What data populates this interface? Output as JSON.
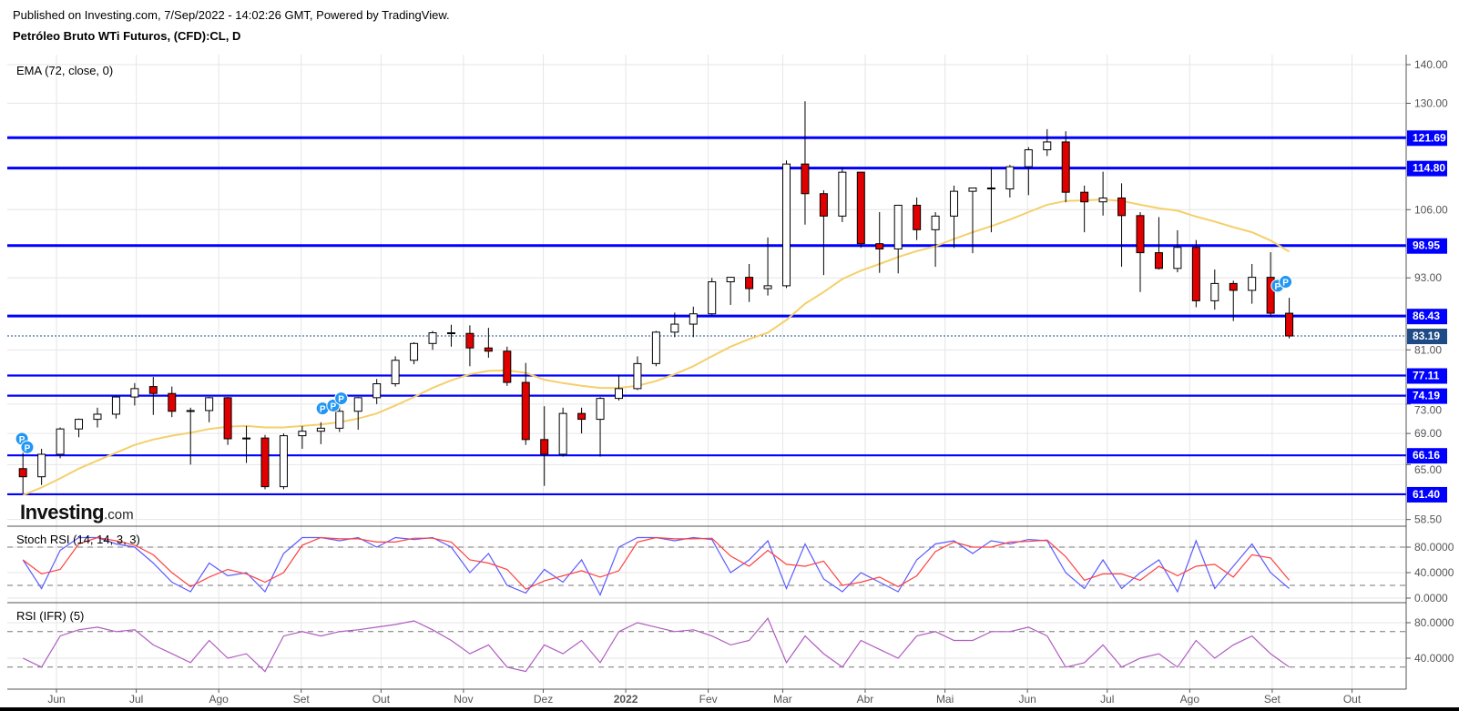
{
  "header": {
    "published": "Published on Investing.com, 7/Sep/2022 - 14:02:26 GMT, Powered by TradingView.",
    "title": "Petróleo Bruto WTi Futuros, (CFD):CL, D"
  },
  "watermark": {
    "brand": "Investing",
    "suffix": ".com"
  },
  "colors": {
    "up": "#ffffff",
    "down": "#e00000",
    "wick": "#000000",
    "ema": "#f5cf6b",
    "level": "#0000ff",
    "last": "#1e4b87",
    "stoch_k": "#5b5bff",
    "stoch_d": "#ff4040",
    "rsi": "#b05cc0",
    "grid": "#e6e6e6"
  },
  "chart_data": [
    {
      "type": "candlestick",
      "note_scale": "log",
      "indicator_label": "EMA (72, close, 0)",
      "ylim": [
        57,
        145
      ],
      "y_ticks": [
        "140.00",
        "130.00",
        "106.00",
        "93.00",
        "81.00",
        "73.00",
        "69.00",
        "65.00",
        "58.50"
      ],
      "x_ticks": [
        {
          "label": "Jun",
          "date": "2021-06-01"
        },
        {
          "label": "Jul",
          "date": "2021-07-01"
        },
        {
          "label": "Ago",
          "date": "2021-08-01"
        },
        {
          "label": "Set",
          "date": "2021-09-01"
        },
        {
          "label": "Out",
          "date": "2021-10-01"
        },
        {
          "label": "Nov",
          "date": "2021-11-01"
        },
        {
          "label": "Dez",
          "date": "2021-12-01"
        },
        {
          "label": "2022",
          "date": "2022-01-01"
        },
        {
          "label": "Fev",
          "date": "2022-02-01"
        },
        {
          "label": "Mar",
          "date": "2022-03-01"
        },
        {
          "label": "Abr",
          "date": "2022-04-01"
        },
        {
          "label": "Mai",
          "date": "2022-05-01"
        },
        {
          "label": "Jun",
          "date": "2022-06-01"
        },
        {
          "label": "Jul",
          "date": "2022-07-01"
        },
        {
          "label": "Ago",
          "date": "2022-08-01"
        },
        {
          "label": "Set",
          "date": "2022-09-01"
        },
        {
          "label": "Out",
          "date": "2022-10-01"
        }
      ],
      "levels": [
        "121.69",
        "114.80",
        "98.95",
        "86.43",
        "77.11",
        "74.19",
        "66.16",
        "61.40"
      ],
      "last_price": "83.19",
      "candles": [
        {
          "d": "2021-05-17",
          "o": 64.5,
          "h": 66.5,
          "l": 61.5,
          "c": 63.5
        },
        {
          "d": "2021-05-24",
          "o": 63.5,
          "h": 67,
          "l": 62.5,
          "c": 66.3
        },
        {
          "d": "2021-05-31",
          "o": 66.3,
          "h": 69.8,
          "l": 65.8,
          "c": 69.6
        },
        {
          "d": "2021-06-07",
          "o": 69.6,
          "h": 71,
          "l": 68.5,
          "c": 70.9
        },
        {
          "d": "2021-06-14",
          "o": 70.9,
          "h": 72.5,
          "l": 69.8,
          "c": 71.6
        },
        {
          "d": "2021-06-21",
          "o": 71.6,
          "h": 74.2,
          "l": 71,
          "c": 74
        },
        {
          "d": "2021-06-28",
          "o": 74,
          "h": 76,
          "l": 72.8,
          "c": 75.2
        },
        {
          "d": "2021-07-05",
          "o": 75.5,
          "h": 76.9,
          "l": 71.5,
          "c": 74.5
        },
        {
          "d": "2021-07-12",
          "o": 74.5,
          "h": 75.5,
          "l": 71.2,
          "c": 72
        },
        {
          "d": "2021-07-19",
          "o": 72,
          "h": 72.5,
          "l": 65,
          "c": 72.1
        },
        {
          "d": "2021-07-26",
          "o": 72.1,
          "h": 74,
          "l": 70.5,
          "c": 73.9
        },
        {
          "d": "2021-08-02",
          "o": 73.9,
          "h": 74,
          "l": 67.5,
          "c": 68.3
        },
        {
          "d": "2021-08-09",
          "o": 68.3,
          "h": 70,
          "l": 65.2,
          "c": 68.4
        },
        {
          "d": "2021-08-16",
          "o": 68.4,
          "h": 68.8,
          "l": 62,
          "c": 62.3
        },
        {
          "d": "2021-08-23",
          "o": 62.3,
          "h": 69,
          "l": 62,
          "c": 68.7
        },
        {
          "d": "2021-08-30",
          "o": 68.7,
          "h": 70,
          "l": 67,
          "c": 69.3
        },
        {
          "d": "2021-09-06",
          "o": 69.3,
          "h": 70.5,
          "l": 67.6,
          "c": 69.7
        },
        {
          "d": "2021-09-13",
          "o": 69.7,
          "h": 73,
          "l": 69.2,
          "c": 72
        },
        {
          "d": "2021-09-20",
          "o": 72,
          "h": 74,
          "l": 69.5,
          "c": 73.9
        },
        {
          "d": "2021-09-27",
          "o": 73.9,
          "h": 76.6,
          "l": 73,
          "c": 75.9
        },
        {
          "d": "2021-10-04",
          "o": 75.9,
          "h": 80,
          "l": 75.5,
          "c": 79.4
        },
        {
          "d": "2021-10-11",
          "o": 79.4,
          "h": 82.2,
          "l": 78.8,
          "c": 82
        },
        {
          "d": "2021-10-18",
          "o": 82,
          "h": 84,
          "l": 81,
          "c": 83.7
        },
        {
          "d": "2021-10-25",
          "o": 83.7,
          "h": 85,
          "l": 81.5,
          "c": 83.6
        },
        {
          "d": "2021-11-01",
          "o": 83.6,
          "h": 84.9,
          "l": 78.5,
          "c": 81.3
        },
        {
          "d": "2021-11-08",
          "o": 81.3,
          "h": 84.5,
          "l": 79.8,
          "c": 80.8
        },
        {
          "d": "2021-11-15",
          "o": 80.8,
          "h": 81.5,
          "l": 75.6,
          "c": 76.1
        },
        {
          "d": "2021-11-22",
          "o": 76.1,
          "h": 79,
          "l": 67.5,
          "c": 68.2
        },
        {
          "d": "2021-11-29",
          "o": 68.2,
          "h": 72.7,
          "l": 62.4,
          "c": 66.3
        },
        {
          "d": "2021-12-06",
          "o": 66.3,
          "h": 72.5,
          "l": 66,
          "c": 71.7
        },
        {
          "d": "2021-12-13",
          "o": 71.7,
          "h": 72.5,
          "l": 69,
          "c": 70.9
        },
        {
          "d": "2021-12-20",
          "o": 70.9,
          "h": 74,
          "l": 66,
          "c": 73.8
        },
        {
          "d": "2021-12-27",
          "o": 73.8,
          "h": 77.2,
          "l": 73.5,
          "c": 75.2
        },
        {
          "d": "2022-01-03",
          "o": 75.2,
          "h": 80,
          "l": 75,
          "c": 78.9
        },
        {
          "d": "2022-01-10",
          "o": 78.9,
          "h": 84,
          "l": 78.5,
          "c": 83.8
        },
        {
          "d": "2022-01-17",
          "o": 83.8,
          "h": 87,
          "l": 83,
          "c": 85.1
        },
        {
          "d": "2022-01-24",
          "o": 85.1,
          "h": 88,
          "l": 83,
          "c": 86.8
        },
        {
          "d": "2022-01-31",
          "o": 86.8,
          "h": 93,
          "l": 86.5,
          "c": 92.3
        },
        {
          "d": "2022-02-07",
          "o": 92.3,
          "h": 93.2,
          "l": 88.3,
          "c": 93.1
        },
        {
          "d": "2022-02-14",
          "o": 93.1,
          "h": 95.5,
          "l": 88.8,
          "c": 91.1
        },
        {
          "d": "2022-02-21",
          "o": 91.1,
          "h": 100.5,
          "l": 89.9,
          "c": 91.6
        },
        {
          "d": "2022-02-28",
          "o": 91.6,
          "h": 116.5,
          "l": 91.2,
          "c": 115.7
        },
        {
          "d": "2022-03-07",
          "o": 115.7,
          "h": 130.5,
          "l": 103,
          "c": 109.3
        },
        {
          "d": "2022-03-14",
          "o": 109.3,
          "h": 110,
          "l": 93.5,
          "c": 104.7
        },
        {
          "d": "2022-03-21",
          "o": 104.7,
          "h": 115,
          "l": 103.5,
          "c": 113.9
        },
        {
          "d": "2022-03-28",
          "o": 113.9,
          "h": 114,
          "l": 98.5,
          "c": 99.3
        },
        {
          "d": "2022-04-04",
          "o": 99.3,
          "h": 105.5,
          "l": 93.9,
          "c": 98.3
        },
        {
          "d": "2022-04-11",
          "o": 98.3,
          "h": 107,
          "l": 93.8,
          "c": 106.9
        },
        {
          "d": "2022-04-18",
          "o": 106.9,
          "h": 108.5,
          "l": 100,
          "c": 102
        },
        {
          "d": "2022-04-25",
          "o": 102,
          "h": 105.5,
          "l": 95,
          "c": 104.7
        },
        {
          "d": "2022-05-02",
          "o": 104.7,
          "h": 111,
          "l": 98.5,
          "c": 109.8
        },
        {
          "d": "2022-05-09",
          "o": 109.8,
          "h": 110.5,
          "l": 97.5,
          "c": 110.5
        },
        {
          "d": "2022-05-16",
          "o": 110.5,
          "h": 115,
          "l": 101.5,
          "c": 110.3
        },
        {
          "d": "2022-05-23",
          "o": 110.3,
          "h": 115.5,
          "l": 108.5,
          "c": 115.1
        },
        {
          "d": "2022-05-30",
          "o": 115.1,
          "h": 119.5,
          "l": 109,
          "c": 118.9
        },
        {
          "d": "2022-06-06",
          "o": 118.9,
          "h": 123.7,
          "l": 117.5,
          "c": 120.7
        },
        {
          "d": "2022-06-13",
          "o": 120.7,
          "h": 123.2,
          "l": 107.5,
          "c": 109.6
        },
        {
          "d": "2022-06-20",
          "o": 109.6,
          "h": 111,
          "l": 101.5,
          "c": 107.6
        },
        {
          "d": "2022-06-27",
          "o": 107.6,
          "h": 114,
          "l": 104.8,
          "c": 108.4
        },
        {
          "d": "2022-07-04",
          "o": 108.4,
          "h": 111.5,
          "l": 95,
          "c": 104.8
        },
        {
          "d": "2022-07-11",
          "o": 104.8,
          "h": 105.5,
          "l": 90.5,
          "c": 97.6
        },
        {
          "d": "2022-07-18",
          "o": 97.6,
          "h": 104.5,
          "l": 94.5,
          "c": 94.7
        },
        {
          "d": "2022-07-25",
          "o": 94.7,
          "h": 101.9,
          "l": 94,
          "c": 98.6
        },
        {
          "d": "2022-08-01",
          "o": 98.6,
          "h": 100,
          "l": 87.9,
          "c": 89
        },
        {
          "d": "2022-08-08",
          "o": 89,
          "h": 94.5,
          "l": 87.5,
          "c": 92
        },
        {
          "d": "2022-08-15",
          "o": 92,
          "h": 92.5,
          "l": 85.6,
          "c": 90.8
        },
        {
          "d": "2022-08-22",
          "o": 90.8,
          "h": 95.5,
          "l": 88.5,
          "c": 93.1
        },
        {
          "d": "2022-08-29",
          "o": 93.1,
          "h": 97.7,
          "l": 86.3,
          "c": 86.9
        },
        {
          "d": "2022-09-05",
          "o": 86.9,
          "h": 89.5,
          "l": 82.8,
          "c": 83.19
        }
      ],
      "ema": [
        61.3,
        62.2,
        63.3,
        64.5,
        65.5,
        66.5,
        67.5,
        68.2,
        68.7,
        69.1,
        69.6,
        69.9,
        70,
        69.8,
        69.8,
        70,
        70.2,
        70.5,
        71,
        71.7,
        72.8,
        74,
        75.3,
        76.4,
        77.3,
        77.8,
        77.9,
        77.5,
        76.5,
        76,
        75.6,
        75.3,
        75.3,
        75.6,
        76.3,
        77.3,
        78.5,
        80,
        81.5,
        82.7,
        83.7,
        85.8,
        88.5,
        90.5,
        92.8,
        94.3,
        95.5,
        96.8,
        97.9,
        98.8,
        100.2,
        101.5,
        102.7,
        104,
        105.5,
        107,
        107.8,
        107.9,
        108.1,
        107.8,
        107,
        106.3,
        105.8,
        104.6,
        103.6,
        102.5,
        101.5,
        99.9,
        97.8
      ],
      "markers": [
        {
          "d": "2021-05-18",
          "p": 68.3,
          "label": "P"
        },
        {
          "d": "2021-05-20",
          "p": 67.2,
          "label": "P"
        },
        {
          "d": "2021-09-08",
          "p": 72.4,
          "label": "P"
        },
        {
          "d": "2021-09-12",
          "p": 72.8,
          "label": "P"
        },
        {
          "d": "2021-09-15",
          "p": 73.8,
          "label": "P"
        },
        {
          "d": "2022-09-02",
          "p": 91.6,
          "label": "P"
        },
        {
          "d": "2022-09-05",
          "p": 92.3,
          "label": "P"
        }
      ]
    },
    {
      "type": "line",
      "indicator_label": "Stoch RSI (14, 14, 3, 3)",
      "ylim": [
        0,
        100
      ],
      "y_ticks": [
        "80.0000",
        "40.0000",
        "0.0000"
      ],
      "bands": [
        80,
        20
      ],
      "series": [
        {
          "key": "k",
          "values": [
            60,
            15,
            75,
            95,
            95,
            85,
            80,
            55,
            25,
            10,
            55,
            35,
            40,
            10,
            70,
            95,
            95,
            90,
            95,
            80,
            95,
            92,
            95,
            80,
            40,
            70,
            20,
            8,
            45,
            25,
            60,
            5,
            80,
            95,
            95,
            90,
            95,
            92,
            40,
            60,
            90,
            15,
            85,
            30,
            10,
            40,
            25,
            10,
            60,
            85,
            90,
            70,
            90,
            85,
            92,
            90,
            40,
            15,
            60,
            15,
            40,
            60,
            10,
            90,
            15,
            50,
            85,
            40,
            15
          ]
        },
        {
          "key": "d",
          "values": [
            60,
            38,
            45,
            85,
            95,
            90,
            83,
            68,
            40,
            18,
            33,
            45,
            38,
            25,
            40,
            83,
            95,
            93,
            93,
            88,
            88,
            94,
            94,
            88,
            60,
            55,
            45,
            14,
            27,
            35,
            43,
            33,
            43,
            88,
            95,
            93,
            93,
            94,
            66,
            50,
            75,
            53,
            50,
            58,
            20,
            25,
            33,
            18,
            35,
            73,
            88,
            80,
            80,
            88,
            89,
            91,
            65,
            28,
            38,
            38,
            28,
            50,
            35,
            50,
            53,
            33,
            68,
            63,
            28
          ]
        }
      ]
    },
    {
      "type": "line",
      "indicator_label": "RSI (IFR) (5)",
      "ylim": [
        0,
        100
      ],
      "y_ticks": [
        "80.0000",
        "40.0000"
      ],
      "bands": [
        70,
        30
      ],
      "series": [
        {
          "key": "rsi",
          "values": [
            40,
            30,
            65,
            72,
            75,
            70,
            72,
            55,
            45,
            35,
            60,
            40,
            45,
            25,
            65,
            70,
            65,
            70,
            72,
            75,
            78,
            82,
            72,
            60,
            45,
            55,
            30,
            25,
            55,
            45,
            60,
            35,
            70,
            80,
            75,
            70,
            72,
            65,
            55,
            60,
            85,
            35,
            65,
            45,
            30,
            60,
            50,
            40,
            65,
            70,
            60,
            60,
            70,
            70,
            75,
            65,
            30,
            35,
            55,
            30,
            40,
            45,
            30,
            60,
            40,
            55,
            65,
            45,
            30
          ]
        }
      ]
    }
  ]
}
